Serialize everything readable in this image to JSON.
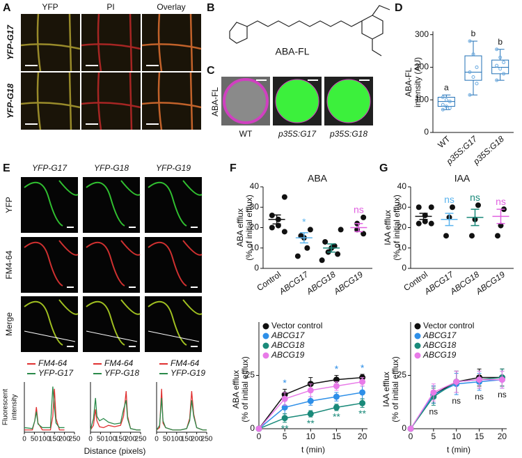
{
  "A": {
    "label": "A",
    "columns": [
      "YFP",
      "PI",
      "Overlay"
    ],
    "rows": [
      "YFP-G17",
      "YFP-G18"
    ]
  },
  "B": {
    "label": "B",
    "compound": "ABA-FL"
  },
  "C": {
    "label": "C",
    "row_label": "ABA-FL",
    "columns": [
      "WT",
      "p35S:G17",
      "p35S:G18"
    ]
  },
  "D": {
    "label": "D",
    "type": "box",
    "ylabel": [
      "ABA-FL",
      "intensity (AU)"
    ],
    "categories": [
      "WT",
      "p35S:G17",
      "p35S:G18"
    ],
    "letters": [
      "a",
      "b",
      "b"
    ],
    "color": "#1f6fb5",
    "ylim": [
      0,
      310
    ],
    "yticks": [
      0,
      100,
      200,
      300
    ],
    "boxes": [
      {
        "min": 70,
        "q1": 80,
        "median": 95,
        "q3": 108,
        "max": 115,
        "points": [
          108,
          100,
          95,
          85,
          80,
          75,
          70
        ]
      },
      {
        "min": 115,
        "q1": 160,
        "median": 185,
        "q3": 235,
        "max": 280,
        "points": [
          280,
          240,
          200,
          185,
          170,
          150,
          115
        ]
      },
      {
        "min": 160,
        "q1": 180,
        "median": 200,
        "q3": 222,
        "max": 255,
        "points": [
          255,
          230,
          215,
          205,
          195,
          180,
          160
        ]
      }
    ]
  },
  "E": {
    "label": "E",
    "columns": [
      "YFP-G17",
      "YFP-G18",
      "YFP-G19"
    ],
    "rows": [
      "YFP",
      "FM4-64",
      "Merge"
    ],
    "profiles": {
      "type": "line",
      "ylabel": [
        "Fluorescent",
        "intensity"
      ],
      "xlabel": "Distance (pixels)",
      "xlim": [
        0,
        250
      ],
      "xticks": [
        0,
        50,
        100,
        150,
        200,
        250
      ],
      "ylim": [
        0,
        110
      ],
      "plots": [
        {
          "x": [
            0,
            40,
            52,
            60,
            68,
            90,
            130,
            142,
            150,
            158,
            175,
            200
          ],
          "series": [
            {
              "name": "FM4-64",
              "color": "#e03030",
              "values": [
                5,
                5,
                25,
                55,
                20,
                5,
                5,
                35,
                95,
                30,
                5,
                5
              ]
            },
            {
              "name": "YFP-G17",
              "color": "#2a8a4a",
              "values": [
                10,
                8,
                25,
                45,
                18,
                10,
                10,
                100,
                55,
                20,
                10,
                10
              ]
            }
          ]
        },
        {
          "x": [
            0,
            15,
            25,
            32,
            45,
            65,
            90,
            120,
            150,
            165,
            178,
            185,
            200,
            230,
            250
          ],
          "series": [
            {
              "name": "FM4-64",
              "color": "#e03030",
              "values": [
                5,
                15,
                50,
                25,
                12,
                10,
                15,
                12,
                15,
                35,
                90,
                35,
                8,
                5,
                5
              ]
            },
            {
              "name": "YFP-G18",
              "color": "#2a8a4a",
              "values": [
                5,
                30,
                75,
                35,
                25,
                30,
                22,
                18,
                20,
                50,
                70,
                30,
                8,
                5,
                5
              ]
            }
          ]
        },
        {
          "x": [
            0,
            15,
            25,
            32,
            45,
            80,
            120,
            150,
            165,
            175,
            185,
            200,
            230,
            250
          ],
          "series": [
            {
              "name": "FM4-64",
              "color": "#e03030",
              "values": [
                5,
                10,
                95,
                20,
                10,
                5,
                5,
                8,
                30,
                90,
                40,
                10,
                5,
                5
              ]
            },
            {
              "name": "YFP-G19",
              "color": "#2a8a4a",
              "values": [
                5,
                15,
                75,
                25,
                10,
                5,
                5,
                8,
                25,
                70,
                35,
                10,
                5,
                5
              ]
            }
          ]
        }
      ]
    }
  },
  "F": {
    "label": "F",
    "title": "ABA",
    "dots": {
      "type": "dot",
      "ylabel": [
        "ABA efflux",
        "(% of initial efflux)"
      ],
      "categories": [
        "Control",
        "ABCG17",
        "ABCG18",
        "ABCG19"
      ],
      "ylim": [
        0,
        40
      ],
      "yticks": [
        0,
        10,
        20,
        30,
        40
      ],
      "groups": [
        {
          "color": "#111111",
          "points": [
            35,
            26,
            24,
            21,
            20,
            18
          ],
          "mean": 24,
          "sem": 2.2
        },
        {
          "color": "#5ab4ee",
          "points": [
            19,
            16,
            15,
            10,
            6
          ],
          "mean": 15,
          "sem": 2.5,
          "annotation": "*"
        },
        {
          "color": "#1a8a7a",
          "points": [
            19,
            13,
            11,
            10,
            8,
            7,
            4
          ],
          "mean": 10,
          "sem": 2
        },
        {
          "color": "#e060e0",
          "points": [
            25,
            22,
            19,
            17
          ],
          "mean": 20,
          "sem": 2,
          "annotation": "ns"
        }
      ]
    },
    "time": {
      "type": "line",
      "ylabel": [
        "ABA efflux",
        "(% of initial efflux)"
      ],
      "xlabel": "t (min)",
      "x": [
        0,
        5,
        10,
        15,
        20
      ],
      "xlim": [
        0,
        21
      ],
      "xticks": [
        0,
        5,
        10,
        15,
        20
      ],
      "ylim": [
        0,
        50
      ],
      "yticks": [
        0,
        25
      ],
      "series": [
        {
          "name": "Vector control",
          "color": "#111111",
          "values": [
            0,
            16,
            21,
            23,
            24
          ],
          "errors": [
            0,
            2.5,
            3,
            2,
            1.5
          ]
        },
        {
          "name": "ABCG17",
          "color": "#2e8fe8",
          "values": [
            0,
            10,
            13,
            15,
            17
          ],
          "errors": [
            0,
            3,
            2,
            2,
            3
          ],
          "annotations": [
            null,
            "*",
            null,
            "*",
            "*"
          ]
        },
        {
          "name": "ABCG18",
          "color": "#1a8a7a",
          "values": [
            0,
            5,
            7,
            10,
            12
          ],
          "errors": [
            0,
            2,
            1.5,
            1.5,
            2
          ],
          "annotations": [
            null,
            "**",
            "**",
            "**",
            "**"
          ]
        },
        {
          "name": "ABCG19",
          "color": "#e87ae8",
          "values": [
            0,
            14,
            18,
            20,
            22
          ],
          "errors": [
            0,
            3,
            3,
            2,
            2
          ]
        }
      ]
    }
  },
  "G": {
    "label": "G",
    "title": "IAA",
    "dots": {
      "type": "dot",
      "ylabel": [
        "IAA efflux",
        "(% of initial efflux)"
      ],
      "categories": [
        "Control",
        "ABCG17",
        "ABCG18",
        "ABCG19"
      ],
      "ylim": [
        0,
        40
      ],
      "yticks": [
        0,
        10,
        20,
        30,
        40
      ],
      "groups": [
        {
          "color": "#111111",
          "points": [
            30,
            30,
            26,
            23,
            22,
            22
          ],
          "mean": 25.5,
          "sem": 1.5
        },
        {
          "color": "#5ab4ee",
          "points": [
            30,
            25,
            16
          ],
          "mean": 24,
          "sem": 3,
          "annotation": "ns"
        },
        {
          "color": "#1a8a7a",
          "points": [
            31,
            24,
            16
          ],
          "mean": 25,
          "sem": 4,
          "annotation": "ns"
        },
        {
          "color": "#e060e0",
          "points": [
            29,
            21,
            16
          ],
          "mean": 25.5,
          "sem": 3.5,
          "annotation": "ns"
        }
      ]
    },
    "time": {
      "type": "line",
      "ylabel": [
        "IAA efflux",
        "(% of initial efflux)"
      ],
      "xlabel": "t (min)",
      "x": [
        0,
        5,
        10,
        15,
        20
      ],
      "xlim": [
        0,
        21
      ],
      "xticks": [
        0,
        5,
        10,
        15,
        20
      ],
      "ylim": [
        0,
        50
      ],
      "yticks": [
        0,
        25
      ],
      "annotations": [
        null,
        "ns",
        "ns",
        "ns",
        "ns"
      ],
      "series": [
        {
          "name": "Vector control",
          "color": "#111111",
          "values": [
            0,
            16,
            22,
            24,
            24
          ],
          "errors": [
            0,
            4,
            5,
            4,
            4
          ]
        },
        {
          "name": "ABCG17",
          "color": "#2e8fe8",
          "values": [
            0,
            16,
            21,
            22,
            23
          ],
          "errors": [
            0,
            4,
            5,
            4,
            4
          ]
        },
        {
          "name": "ABCG18",
          "color": "#1a8a7a",
          "values": [
            0,
            15,
            22,
            23,
            24
          ],
          "errors": [
            0,
            4,
            5,
            4,
            4
          ]
        },
        {
          "name": "ABCG19",
          "color": "#e87ae8",
          "values": [
            0,
            17,
            22,
            23,
            23
          ],
          "errors": [
            0,
            4,
            5,
            4,
            4
          ]
        }
      ]
    }
  }
}
